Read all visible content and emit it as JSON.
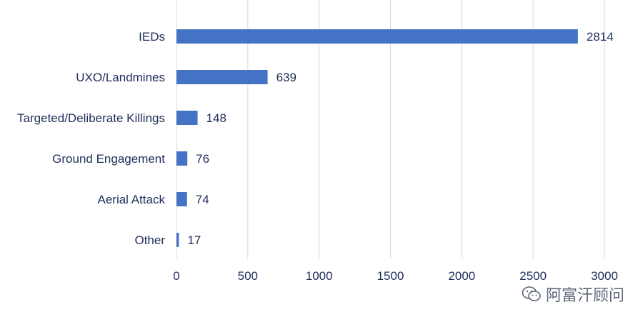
{
  "chart_data": {
    "type": "bar",
    "orientation": "horizontal",
    "categories": [
      "IEDs",
      "UXO/Landmines",
      "Targeted/Deliberate Killings",
      "Ground Engagement",
      "Aerial Attack",
      "Other"
    ],
    "values": [
      2814,
      639,
      148,
      76,
      74,
      17
    ],
    "title": "",
    "xlabel": "",
    "ylabel": "",
    "xlim": [
      0,
      3000
    ],
    "xticks": [
      0,
      500,
      1000,
      1500,
      2000,
      2500,
      3000
    ],
    "grid": true,
    "bar_color": "#4472c4",
    "text_color": "#1f2d5a"
  },
  "watermark": {
    "text": "阿富汗顾问",
    "icon": "wechat-icon"
  }
}
